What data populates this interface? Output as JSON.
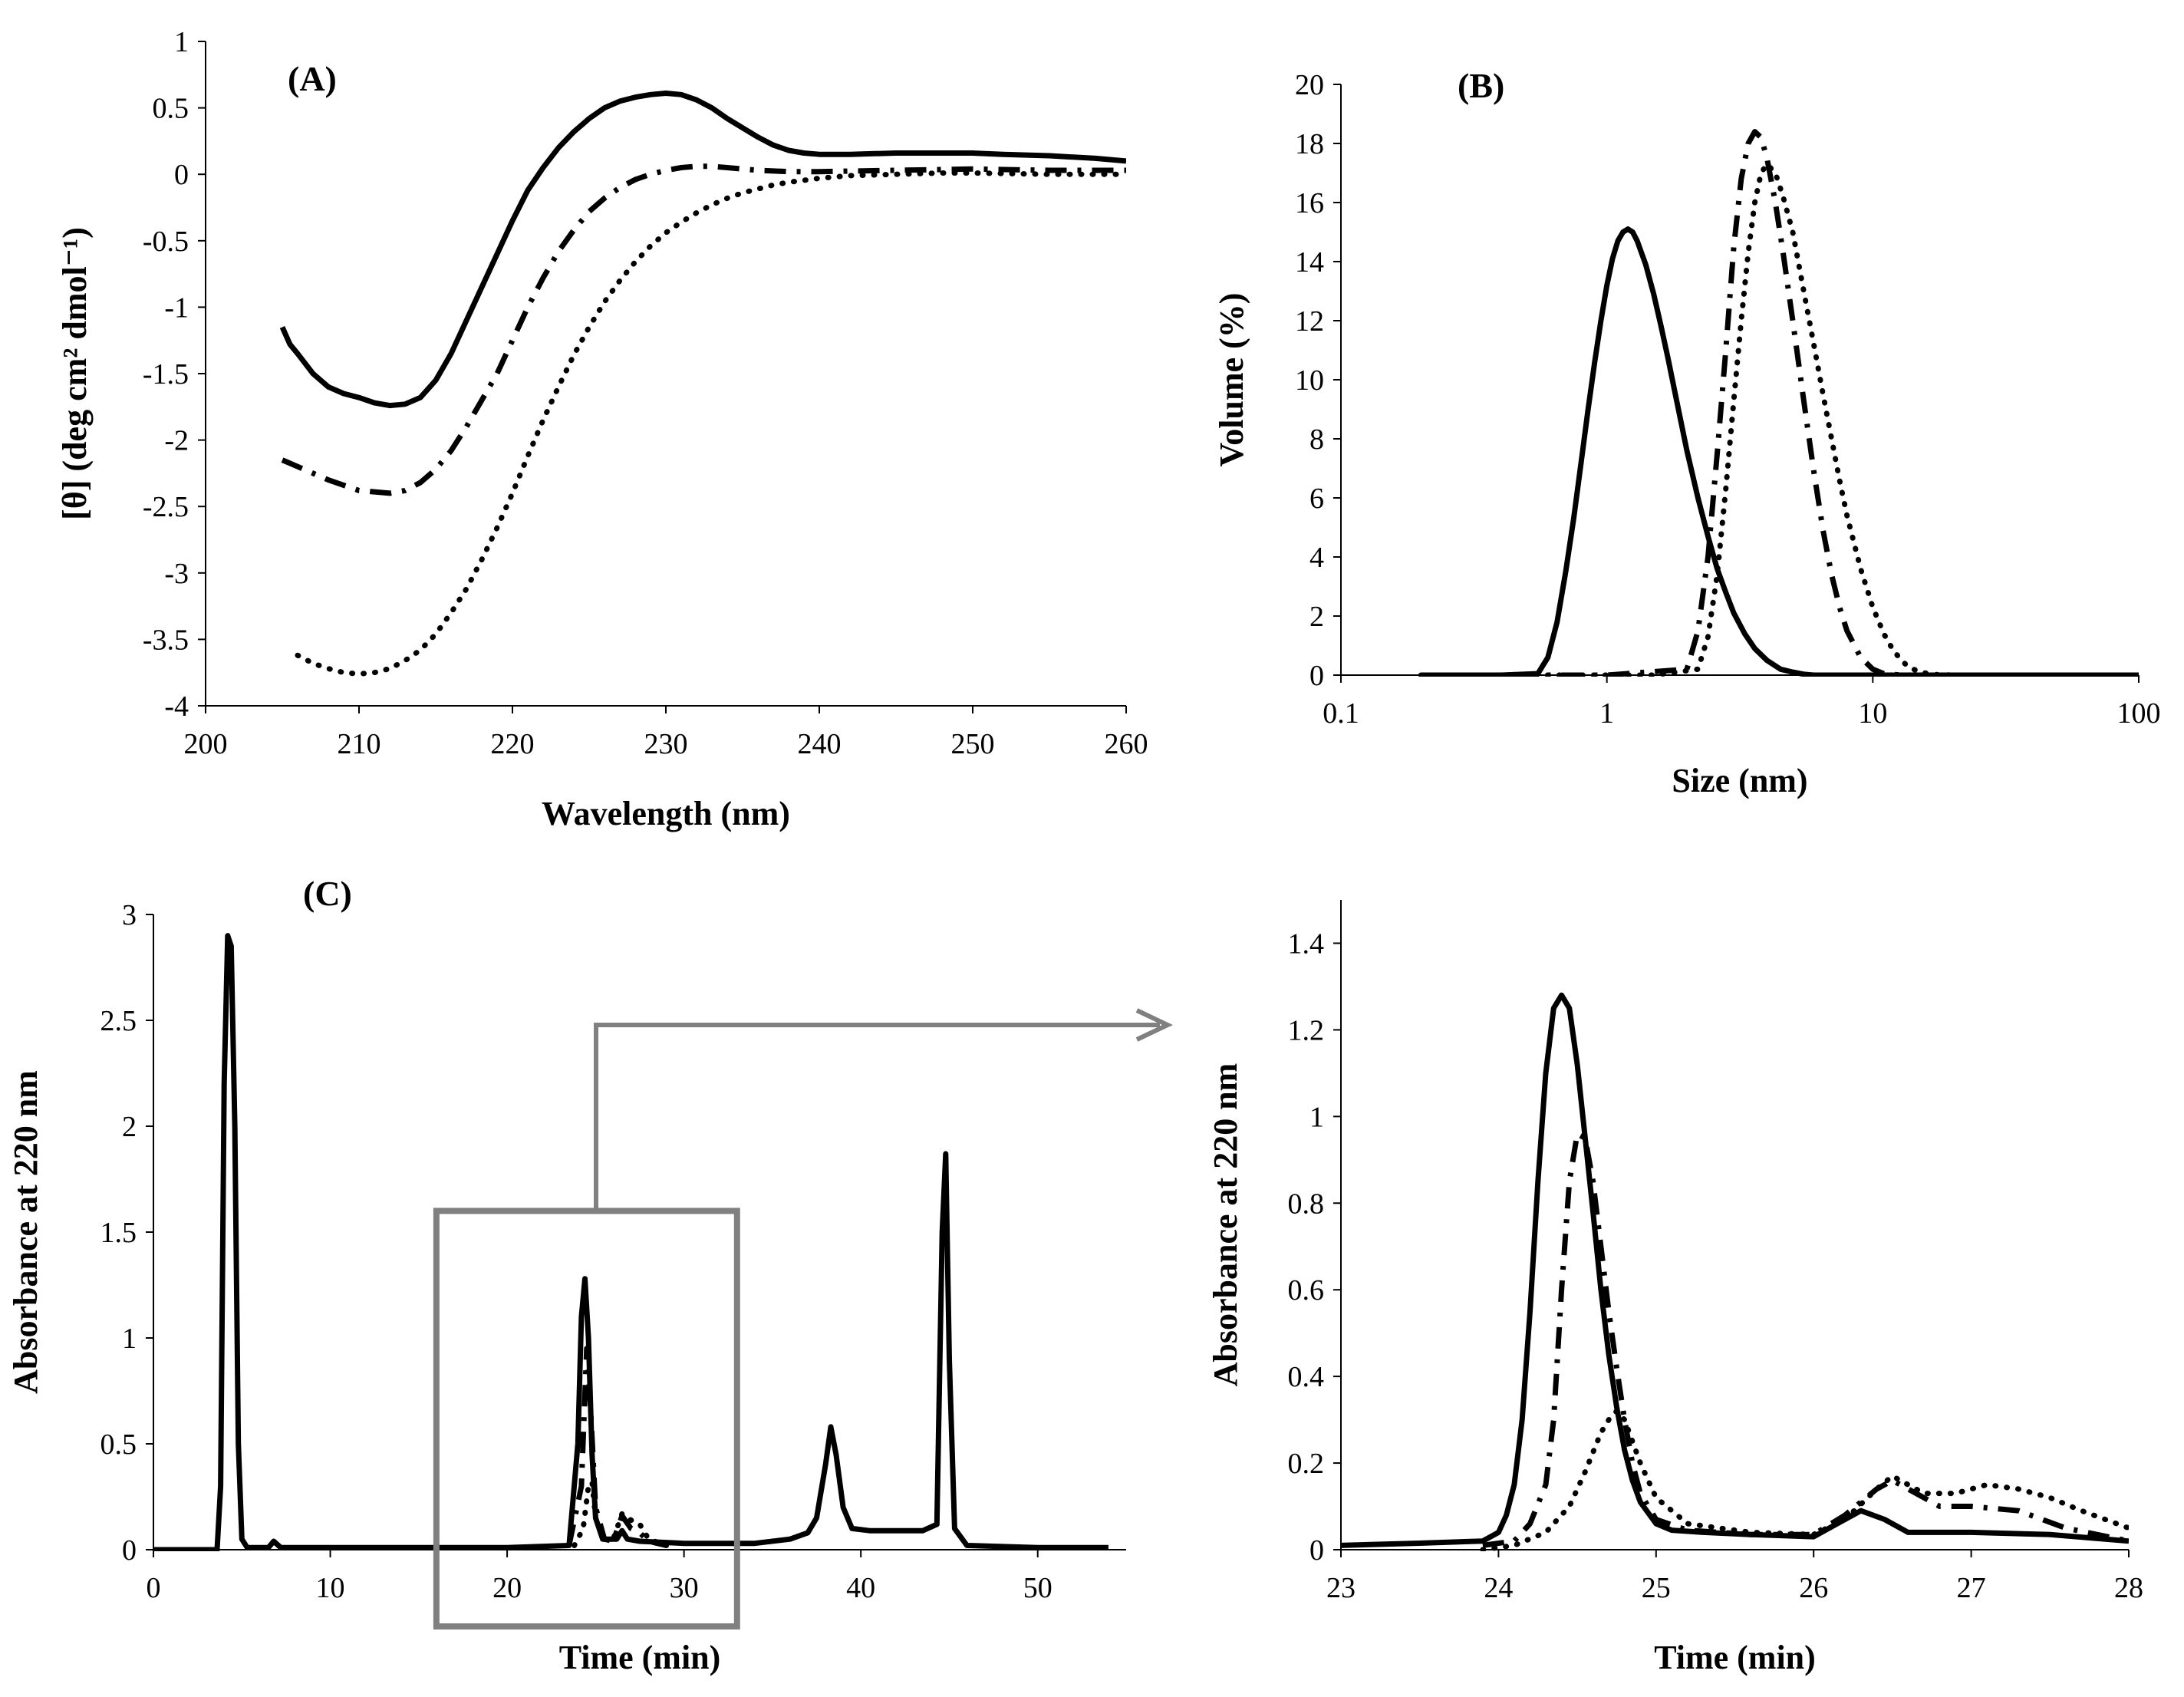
{
  "chart_data": [
    {
      "panel": "A",
      "type": "line",
      "panel_label": "(A)",
      "xlabel": "Wavelength  (nm)",
      "ylabel": "[θ] (deg cm² dmol⁻¹)",
      "xlim": [
        200,
        260
      ],
      "ylim": [
        -4,
        1
      ],
      "xticks": [
        200,
        210,
        220,
        230,
        240,
        250,
        260
      ],
      "yticks": [
        1,
        0.5,
        0,
        -0.5,
        -1,
        -1.5,
        -2,
        -2.5,
        -3,
        -3.5,
        -4
      ],
      "series": [
        {
          "name": "solid",
          "style": "solid",
          "x": [
            205,
            205.5,
            206,
            207,
            208,
            209,
            210,
            211,
            212,
            213,
            214,
            215,
            216,
            217,
            218,
            219,
            220,
            221,
            222,
            223,
            224,
            225,
            226,
            227,
            228,
            229,
            230,
            231,
            232,
            233,
            234,
            235,
            236,
            237,
            238,
            239,
            240,
            242,
            245,
            248,
            250,
            252,
            255,
            258,
            260
          ],
          "y": [
            -1.15,
            -1.28,
            -1.35,
            -1.5,
            -1.6,
            -1.65,
            -1.68,
            -1.72,
            -1.74,
            -1.73,
            -1.68,
            -1.55,
            -1.35,
            -1.1,
            -0.85,
            -0.6,
            -0.35,
            -0.12,
            0.05,
            0.2,
            0.32,
            0.42,
            0.5,
            0.55,
            0.58,
            0.6,
            0.61,
            0.6,
            0.56,
            0.5,
            0.42,
            0.35,
            0.28,
            0.22,
            0.18,
            0.16,
            0.15,
            0.15,
            0.16,
            0.16,
            0.16,
            0.15,
            0.14,
            0.12,
            0.1
          ]
        },
        {
          "name": "dash-dot",
          "style": "dashdot",
          "x": [
            205,
            206,
            208,
            210,
            212,
            213,
            214,
            215,
            216,
            217,
            218,
            219,
            220,
            221,
            222,
            223,
            224,
            225,
            226,
            227,
            228,
            229,
            230,
            231,
            232,
            233,
            234,
            235,
            236,
            238,
            240,
            245,
            250,
            255,
            260
          ],
          "y": [
            -2.15,
            -2.2,
            -2.3,
            -2.38,
            -2.4,
            -2.38,
            -2.32,
            -2.22,
            -2.08,
            -1.9,
            -1.7,
            -1.5,
            -1.25,
            -1.0,
            -0.78,
            -0.58,
            -0.42,
            -0.28,
            -0.18,
            -0.1,
            -0.04,
            0.0,
            0.03,
            0.05,
            0.06,
            0.06,
            0.05,
            0.04,
            0.03,
            0.02,
            0.02,
            0.03,
            0.04,
            0.03,
            0.03
          ]
        },
        {
          "name": "dotted",
          "style": "dotted",
          "x": [
            206,
            207,
            208,
            209,
            210,
            211,
            212,
            213,
            214,
            215,
            216,
            217,
            218,
            219,
            220,
            221,
            222,
            223,
            224,
            225,
            226,
            227,
            228,
            229,
            230,
            231,
            232,
            233,
            234,
            235,
            236,
            237,
            238,
            240,
            242,
            245,
            248,
            250,
            255,
            260
          ],
          "y": [
            -3.62,
            -3.68,
            -3.72,
            -3.75,
            -3.76,
            -3.75,
            -3.72,
            -3.66,
            -3.58,
            -3.46,
            -3.3,
            -3.12,
            -2.9,
            -2.66,
            -2.4,
            -2.12,
            -1.85,
            -1.6,
            -1.36,
            -1.15,
            -0.96,
            -0.8,
            -0.66,
            -0.54,
            -0.44,
            -0.36,
            -0.29,
            -0.23,
            -0.18,
            -0.14,
            -0.11,
            -0.08,
            -0.06,
            -0.03,
            -0.01,
            0.0,
            0.01,
            0.01,
            0.0,
            0.0
          ]
        }
      ]
    },
    {
      "panel": "B",
      "type": "line",
      "panel_label": "(B)",
      "xscale": "log",
      "xlabel": "Size (nm)",
      "ylabel": "Volume  (%)",
      "xlim": [
        0.1,
        100
      ],
      "ylim": [
        0,
        20
      ],
      "xticks": [
        0.1,
        1,
        10,
        100
      ],
      "xtick_labels": [
        "0.1",
        "1",
        "10",
        "100"
      ],
      "yticks": [
        0,
        2,
        4,
        6,
        8,
        10,
        12,
        14,
        16,
        18,
        20
      ],
      "series": [
        {
          "name": "solid",
          "style": "solid",
          "x": [
            0.2,
            0.4,
            0.55,
            0.6,
            0.65,
            0.7,
            0.75,
            0.8,
            0.85,
            0.9,
            0.95,
            1.0,
            1.05,
            1.1,
            1.15,
            1.2,
            1.25,
            1.3,
            1.4,
            1.5,
            1.6,
            1.7,
            1.8,
            2.0,
            2.2,
            2.4,
            2.6,
            2.8,
            3.0,
            3.3,
            3.6,
            4.0,
            4.5,
            5.0,
            5.5,
            6.0,
            7.0,
            20,
            100
          ],
          "y": [
            0,
            0,
            0.05,
            0.6,
            1.8,
            3.5,
            5.3,
            7.2,
            9.0,
            10.6,
            12.0,
            13.2,
            14.1,
            14.7,
            15.0,
            15.1,
            15.0,
            14.7,
            13.9,
            12.9,
            11.8,
            10.7,
            9.6,
            7.6,
            6.0,
            4.7,
            3.6,
            2.8,
            2.1,
            1.4,
            0.9,
            0.5,
            0.2,
            0.1,
            0.03,
            0,
            0,
            0,
            0
          ]
        },
        {
          "name": "dash-dot",
          "style": "dashdot",
          "x": [
            0.2,
            1.0,
            2.0,
            2.2,
            2.4,
            2.6,
            2.8,
            3.0,
            3.2,
            3.4,
            3.6,
            3.8,
            4.0,
            4.3,
            4.6,
            5.0,
            5.5,
            6.0,
            6.5,
            7.0,
            7.5,
            8.0,
            9.0,
            10.0,
            11.0,
            13.0,
            20
          ],
          "y": [
            0,
            0,
            0.2,
            1.5,
            4.0,
            7.5,
            11.0,
            14.5,
            16.8,
            18.0,
            18.4,
            18.2,
            17.5,
            16.0,
            14.3,
            12.0,
            9.3,
            6.9,
            4.9,
            3.4,
            2.3,
            1.5,
            0.6,
            0.2,
            0.05,
            0,
            0
          ]
        },
        {
          "name": "dotted",
          "style": "dotted",
          "x": [
            0.2,
            1.5,
            2.2,
            2.4,
            2.6,
            2.8,
            3.0,
            3.2,
            3.4,
            3.6,
            3.8,
            4.0,
            4.3,
            4.6,
            5.0,
            5.5,
            6.0,
            6.5,
            7.0,
            7.5,
            8.0,
            9.0,
            10.0,
            11.0,
            12.0,
            13.5,
            15.0,
            17.0,
            20.0,
            30
          ],
          "y": [
            0,
            0,
            0.2,
            1.3,
            3.4,
            6.3,
            9.3,
            12.0,
            14.3,
            16.0,
            17.0,
            17.3,
            17.0,
            16.2,
            15.0,
            13.0,
            11.2,
            9.5,
            8.0,
            6.6,
            5.4,
            3.6,
            2.3,
            1.4,
            0.8,
            0.3,
            0.1,
            0.02,
            0,
            0
          ]
        }
      ]
    },
    {
      "panel": "C",
      "type": "line",
      "panel_label": "(C)",
      "xlabel": "Time (min)",
      "ylabel": "Absorbance  at 220 nm",
      "xlim": [
        0,
        55
      ],
      "ylim": [
        0,
        3
      ],
      "xticks": [
        0,
        10,
        20,
        30,
        40,
        50
      ],
      "yticks": [
        0,
        0.5,
        1,
        1.5,
        2,
        2.5,
        3
      ],
      "zoom_box": {
        "x0": 16,
        "x1": 33,
        "y0": 0,
        "y1": 1.6
      },
      "series": [
        {
          "name": "solid",
          "style": "solid",
          "x": [
            0,
            3.6,
            3.8,
            4.0,
            4.2,
            4.4,
            4.6,
            4.8,
            5.0,
            5.3,
            6.5,
            6.8,
            7.2,
            10,
            20,
            23.5,
            24.0,
            24.2,
            24.4,
            24.6,
            24.8,
            25.0,
            25.4,
            26.2,
            26.5,
            26.8,
            27.5,
            30,
            34,
            36,
            37.0,
            37.5,
            38.0,
            38.3,
            38.6,
            39.0,
            39.5,
            40.5,
            42,
            43.5,
            44.3,
            44.6,
            44.8,
            45.0,
            45.3,
            46,
            50,
            54
          ],
          "y": [
            0,
            0,
            0.3,
            2.2,
            2.9,
            2.85,
            2.0,
            0.5,
            0.05,
            0.01,
            0.01,
            0.04,
            0.01,
            0.01,
            0.01,
            0.02,
            0.5,
            1.1,
            1.28,
            1.0,
            0.45,
            0.15,
            0.05,
            0.05,
            0.09,
            0.05,
            0.04,
            0.03,
            0.03,
            0.05,
            0.08,
            0.15,
            0.4,
            0.58,
            0.45,
            0.2,
            0.1,
            0.09,
            0.09,
            0.09,
            0.12,
            1.5,
            1.87,
            0.9,
            0.1,
            0.02,
            0.01,
            0.01
          ]
        },
        {
          "name": "dash-dot",
          "style": "dashdot",
          "x": [
            23.5,
            24.2,
            24.5,
            24.7,
            25.0,
            25.5,
            26.0,
            26.5,
            27.0,
            27.5,
            28.0,
            29
          ],
          "y": [
            0.02,
            0.3,
            0.95,
            0.7,
            0.2,
            0.05,
            0.04,
            0.16,
            0.1,
            0.08,
            0.04,
            0.02
          ]
        },
        {
          "name": "dotted",
          "style": "dotted",
          "x": [
            23.8,
            24.3,
            24.6,
            24.8,
            25.0,
            25.5,
            26.0,
            26.5,
            27.0,
            27.5,
            28.0,
            29
          ],
          "y": [
            0.02,
            0.1,
            0.3,
            0.32,
            0.15,
            0.05,
            0.05,
            0.17,
            0.14,
            0.12,
            0.05,
            0.02
          ]
        }
      ]
    },
    {
      "panel": "C-zoom",
      "type": "line",
      "panel_label": "",
      "xlabel": "Time (min)",
      "ylabel": "Absorbance  at 220 nm",
      "xlim": [
        23,
        28
      ],
      "ylim": [
        0,
        1.5
      ],
      "xticks": [
        23,
        24,
        25,
        26,
        27,
        28
      ],
      "yticks": [
        0,
        0.2,
        0.4,
        0.6,
        0.8,
        1,
        1.2,
        1.4
      ],
      "series": [
        {
          "name": "solid",
          "style": "solid",
          "x": [
            23,
            23.5,
            23.9,
            24.0,
            24.05,
            24.1,
            24.15,
            24.2,
            24.25,
            24.3,
            24.35,
            24.4,
            24.45,
            24.5,
            24.55,
            24.6,
            24.65,
            24.7,
            24.75,
            24.8,
            24.85,
            24.9,
            25.0,
            25.1,
            25.3,
            25.6,
            26.0,
            26.15,
            26.3,
            26.45,
            26.6,
            27.0,
            27.5,
            28
          ],
          "y": [
            0.01,
            0.015,
            0.02,
            0.04,
            0.08,
            0.15,
            0.3,
            0.55,
            0.85,
            1.1,
            1.25,
            1.28,
            1.25,
            1.12,
            0.95,
            0.78,
            0.6,
            0.45,
            0.33,
            0.23,
            0.16,
            0.11,
            0.06,
            0.045,
            0.04,
            0.035,
            0.03,
            0.06,
            0.09,
            0.07,
            0.04,
            0.04,
            0.035,
            0.02
          ]
        },
        {
          "name": "dash-dot",
          "style": "dashdot",
          "x": [
            23.9,
            24.1,
            24.2,
            24.3,
            24.35,
            24.4,
            24.45,
            24.5,
            24.55,
            24.6,
            24.65,
            24.7,
            24.75,
            24.8,
            24.85,
            24.9,
            25.0,
            25.2,
            25.6,
            26.0,
            26.2,
            26.4,
            26.5,
            26.6,
            26.8,
            27.0,
            27.3,
            27.6,
            28
          ],
          "y": [
            0.01,
            0.02,
            0.06,
            0.15,
            0.3,
            0.6,
            0.85,
            0.96,
            0.95,
            0.85,
            0.7,
            0.55,
            0.42,
            0.3,
            0.2,
            0.13,
            0.07,
            0.045,
            0.035,
            0.035,
            0.08,
            0.14,
            0.16,
            0.14,
            0.1,
            0.1,
            0.09,
            0.05,
            0.02
          ]
        },
        {
          "name": "dotted",
          "style": "dotted",
          "x": [
            23.9,
            24.1,
            24.3,
            24.45,
            24.55,
            24.65,
            24.7,
            24.75,
            24.8,
            24.85,
            24.9,
            25.0,
            25.2,
            25.6,
            26.0,
            26.2,
            26.4,
            26.5,
            26.7,
            26.9,
            27.1,
            27.3,
            27.5,
            27.7,
            28
          ],
          "y": [
            0.0,
            0.01,
            0.04,
            0.1,
            0.18,
            0.27,
            0.3,
            0.32,
            0.3,
            0.25,
            0.2,
            0.12,
            0.06,
            0.04,
            0.035,
            0.07,
            0.14,
            0.17,
            0.13,
            0.13,
            0.15,
            0.14,
            0.12,
            0.09,
            0.05
          ]
        }
      ]
    }
  ]
}
